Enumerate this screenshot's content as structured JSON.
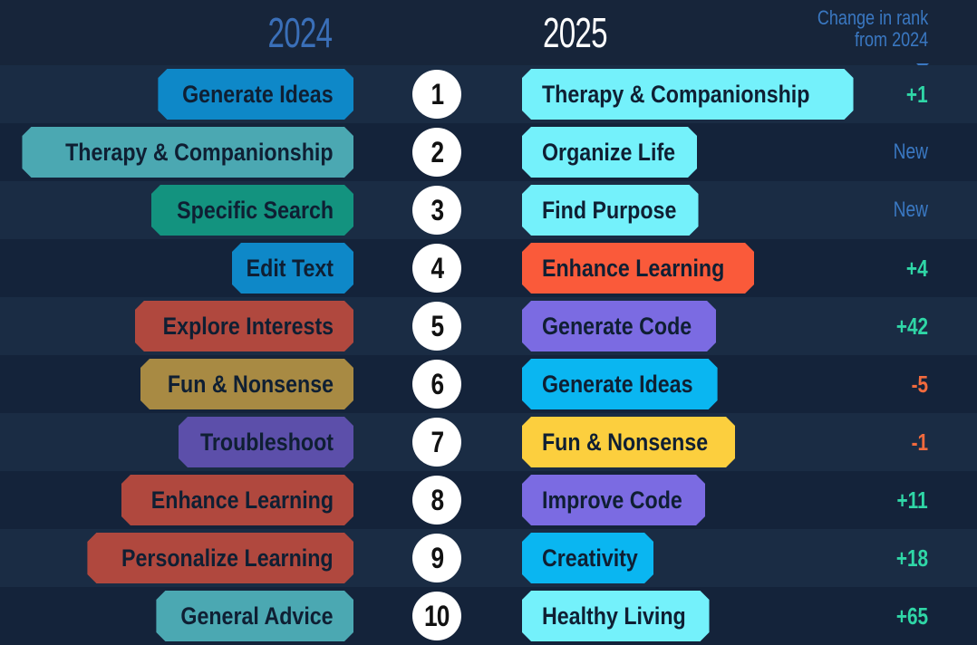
{
  "header": {
    "year_left": "2024",
    "year_right": "2025",
    "change_line1": "Change in rank",
    "change_line2": "from 2024"
  },
  "colors": {
    "up": "#2fd6a6",
    "down": "#f26a3d",
    "new": "#3a78c2"
  },
  "rows": [
    {
      "rank": "1",
      "left": {
        "label": "Generate Ideas",
        "color": "#0e88c8"
      },
      "right": {
        "label": "Therapy & Companionship",
        "color": "#74f1fb"
      },
      "change": "+1",
      "change_type": "up"
    },
    {
      "rank": "2",
      "left": {
        "label": "Therapy & Companionship",
        "color": "#4ba8b2"
      },
      "right": {
        "label": "Organize Life",
        "color": "#74f1fb"
      },
      "change": "New",
      "change_type": "new"
    },
    {
      "rank": "3",
      "left": {
        "label": "Specific Search",
        "color": "#13937f"
      },
      "right": {
        "label": "Find Purpose",
        "color": "#74f1fb"
      },
      "change": "New",
      "change_type": "new"
    },
    {
      "rank": "4",
      "left": {
        "label": "Edit Text",
        "color": "#0e88c8"
      },
      "right": {
        "label": "Enhance Learning",
        "color": "#fa5a3a"
      },
      "change": "+4",
      "change_type": "up"
    },
    {
      "rank": "5",
      "left": {
        "label": "Explore Interests",
        "color": "#b0483e"
      },
      "right": {
        "label": "Generate Code",
        "color": "#7b6be2"
      },
      "change": "+42",
      "change_type": "up"
    },
    {
      "rank": "6",
      "left": {
        "label": "Fun & Nonsense",
        "color": "#a88a43"
      },
      "right": {
        "label": "Generate Ideas",
        "color": "#0ab6f1"
      },
      "change": "-5",
      "change_type": "down"
    },
    {
      "rank": "7",
      "left": {
        "label": "Troubleshoot",
        "color": "#5c4faa"
      },
      "right": {
        "label": "Fun & Nonsense",
        "color": "#fccf3e"
      },
      "change": "-1",
      "change_type": "down"
    },
    {
      "rank": "8",
      "left": {
        "label": "Enhance Learning",
        "color": "#b0483e"
      },
      "right": {
        "label": "Improve Code",
        "color": "#7b6be2"
      },
      "change": "+11",
      "change_type": "up"
    },
    {
      "rank": "9",
      "left": {
        "label": "Personalize Learning",
        "color": "#b0483e"
      },
      "right": {
        "label": "Creativity",
        "color": "#0ab6f1"
      },
      "change": "+18",
      "change_type": "up"
    },
    {
      "rank": "10",
      "left": {
        "label": "General Advice",
        "color": "#4ba8b2"
      },
      "right": {
        "label": "Healthy Living",
        "color": "#74f1fb"
      },
      "change": "+65",
      "change_type": "up"
    }
  ]
}
